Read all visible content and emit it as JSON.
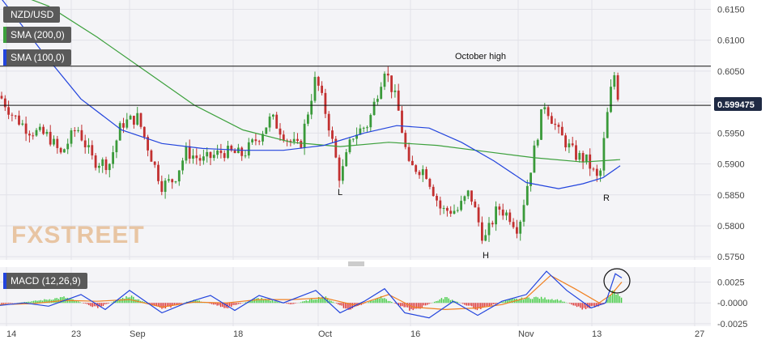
{
  "instrument": "NZD/USD",
  "legend": [
    {
      "label": "SMA (200,0)",
      "color": "#3ca03c"
    },
    {
      "label": "SMA (100,0)",
      "color": "#2244dd"
    }
  ],
  "current_price": "0.599475",
  "watermark": "FXSTREET",
  "annotations": {
    "october_high": "October high",
    "L": "L",
    "H": "H",
    "R": "R"
  },
  "chart_data": [
    {
      "type": "candlestick",
      "title": "NZD/USD",
      "x_ticks": [
        "14",
        "23",
        "Sep",
        "18",
        "Oct",
        "16",
        "Nov",
        "13",
        "27"
      ],
      "y_ticks": [
        0.615,
        0.61,
        0.605,
        0.6,
        0.595,
        0.59,
        0.585,
        0.58,
        0.575
      ],
      "ylim": [
        0.5745,
        0.6165
      ],
      "horizontal_lines": [
        {
          "label": "October high",
          "value": 0.6058
        },
        {
          "label": "current price",
          "value": 0.599475
        }
      ],
      "series": [
        {
          "name": "SMA (200,0)",
          "type": "line",
          "color": "#3ca03c",
          "points": [
            [
              0,
              0.6185
            ],
            [
              60,
              0.6155
            ],
            [
              120,
              0.6105
            ],
            [
              180,
              0.605
            ],
            [
              240,
              0.5995
            ],
            [
              300,
              0.5955
            ],
            [
              360,
              0.5935
            ],
            [
              420,
              0.5928
            ],
            [
              480,
              0.5935
            ],
            [
              540,
              0.593
            ],
            [
              600,
              0.592
            ],
            [
              660,
              0.591
            ],
            [
              720,
              0.5903
            ],
            [
              766,
              0.5907
            ]
          ]
        },
        {
          "name": "SMA (100,0)",
          "type": "line",
          "color": "#2244dd",
          "points": [
            [
              0,
              0.617
            ],
            [
              50,
              0.6085
            ],
            [
              100,
              0.6005
            ],
            [
              150,
              0.5955
            ],
            [
              200,
              0.5933
            ],
            [
              250,
              0.5925
            ],
            [
              300,
              0.5922
            ],
            [
              350,
              0.5922
            ],
            [
              400,
              0.593
            ],
            [
              450,
              0.595
            ],
            [
              490,
              0.5962
            ],
            [
              530,
              0.5958
            ],
            [
              570,
              0.5935
            ],
            [
              610,
              0.5905
            ],
            [
              650,
              0.587
            ],
            [
              690,
              0.586
            ],
            [
              720,
              0.5868
            ],
            [
              745,
              0.5878
            ],
            [
              766,
              0.5897
            ]
          ]
        }
      ],
      "price_path": [
        [
          0,
          0.601
        ],
        [
          15,
          0.598
        ],
        [
          35,
          0.5955
        ],
        [
          60,
          0.5945
        ],
        [
          75,
          0.5915
        ],
        [
          95,
          0.596
        ],
        [
          115,
          0.5905
        ],
        [
          135,
          0.59
        ],
        [
          150,
          0.5965
        ],
        [
          170,
          0.5975
        ],
        [
          190,
          0.59
        ],
        [
          200,
          0.5865
        ],
        [
          215,
          0.5875
        ],
        [
          230,
          0.592
        ],
        [
          250,
          0.5905
        ],
        [
          275,
          0.592
        ],
        [
          300,
          0.5915
        ],
        [
          320,
          0.5945
        ],
        [
          335,
          0.5975
        ],
        [
          355,
          0.594
        ],
        [
          370,
          0.5925
        ],
        [
          390,
          0.604
        ],
        [
          405,
          0.597
        ],
        [
          420,
          0.5875
        ],
        [
          435,
          0.5945
        ],
        [
          455,
          0.5965
        ],
        [
          475,
          0.6055
        ],
        [
          490,
          0.6
        ],
        [
          505,
          0.5895
        ],
        [
          525,
          0.589
        ],
        [
          545,
          0.5825
        ],
        [
          565,
          0.5825
        ],
        [
          580,
          0.5855
        ],
        [
          598,
          0.5775
        ],
        [
          615,
          0.583
        ],
        [
          630,
          0.5815
        ],
        [
          640,
          0.5795
        ],
        [
          655,
          0.589
        ],
        [
          672,
          0.6
        ],
        [
          690,
          0.595
        ],
        [
          710,
          0.5915
        ],
        [
          725,
          0.5905
        ],
        [
          740,
          0.587
        ],
        [
          748,
          0.596
        ],
        [
          758,
          0.605
        ],
        [
          766,
          0.599
        ]
      ]
    },
    {
      "type": "macd",
      "title": "MACD (12,26,9)",
      "y_ticks": [
        0.0025,
        -0.0,
        -0.0025
      ],
      "ylim": [
        -0.0028,
        0.0043
      ],
      "macd_line": [
        [
          0,
          -0.0003
        ],
        [
          30,
          0.0
        ],
        [
          60,
          -0.0004
        ],
        [
          100,
          0.001
        ],
        [
          130,
          -0.0008
        ],
        [
          160,
          0.0015
        ],
        [
          200,
          -0.0012
        ],
        [
          230,
          0.0
        ],
        [
          260,
          0.0009
        ],
        [
          290,
          -0.0009
        ],
        [
          320,
          0.0009
        ],
        [
          350,
          0.0
        ],
        [
          390,
          0.0015
        ],
        [
          420,
          -0.0012
        ],
        [
          450,
          0.0002
        ],
        [
          475,
          0.0017
        ],
        [
          500,
          -0.0012
        ],
        [
          530,
          -0.0018
        ],
        [
          560,
          0.0002
        ],
        [
          590,
          -0.0015
        ],
        [
          620,
          0.0002
        ],
        [
          650,
          0.001
        ],
        [
          675,
          0.0038
        ],
        [
          700,
          0.0015
        ],
        [
          730,
          -0.0006
        ],
        [
          748,
          0.0
        ],
        [
          760,
          0.0035
        ],
        [
          768,
          0.003
        ]
      ],
      "signal_line": [
        [
          0,
          -0.0002
        ],
        [
          40,
          -0.0001
        ],
        [
          80,
          0.0003
        ],
        [
          120,
          0.0002
        ],
        [
          160,
          0.0004
        ],
        [
          200,
          -0.0005
        ],
        [
          240,
          0.0001
        ],
        [
          280,
          0.0
        ],
        [
          320,
          0.0004
        ],
        [
          360,
          0.0004
        ],
        [
          400,
          0.0006
        ],
        [
          440,
          -0.0003
        ],
        [
          480,
          0.001
        ],
        [
          510,
          -0.0005
        ],
        [
          550,
          -0.0008
        ],
        [
          590,
          -0.0006
        ],
        [
          620,
          -0.0002
        ],
        [
          650,
          0.0006
        ],
        [
          680,
          0.0033
        ],
        [
          710,
          0.0017
        ],
        [
          740,
          0.0
        ],
        [
          755,
          0.001
        ],
        [
          768,
          0.0025
        ]
      ],
      "histogram": [
        [
          0,
          -0.0002
        ],
        [
          40,
          0.0002
        ],
        [
          80,
          0.0007
        ],
        [
          120,
          -0.0006
        ],
        [
          160,
          0.0009
        ],
        [
          200,
          -0.0008
        ],
        [
          240,
          0.0004
        ],
        [
          280,
          -0.0006
        ],
        [
          320,
          0.0006
        ],
        [
          360,
          -0.0002
        ],
        [
          400,
          0.0008
        ],
        [
          430,
          -0.0009
        ],
        [
          470,
          0.0007
        ],
        [
          510,
          -0.001
        ],
        [
          550,
          0.0007
        ],
        [
          590,
          -0.0008
        ],
        [
          630,
          0.0004
        ],
        [
          660,
          0.0007
        ],
        [
          690,
          0.0004
        ],
        [
          720,
          -0.0007
        ],
        [
          745,
          -0.0003
        ],
        [
          758,
          0.0015
        ],
        [
          768,
          0.0005
        ]
      ]
    }
  ]
}
